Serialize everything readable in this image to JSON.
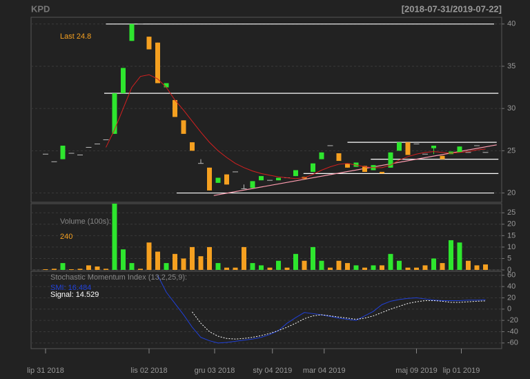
{
  "header": {
    "symbol": "KPD",
    "range": "[2018-07-31/2019-07-22]"
  },
  "chart_data": [
    {
      "type": "candlestick",
      "annotation": "Last 24.8",
      "up_color": "#2ee62e",
      "down_color": "#f5a020",
      "flat_color": "#bbbbbb",
      "ma_color": "#d42020",
      "open": [
        24.6,
        23.7,
        24.0,
        24.7,
        24.5,
        25.4,
        25.8,
        26.3,
        27.0,
        31.8,
        38.0,
        40.0,
        38.5,
        37.8,
        32.5,
        31.0,
        28.6,
        26.0,
        23.5,
        23.0,
        21.2,
        22.2,
        22.5,
        20.5,
        20.6,
        21.5,
        21.5,
        21.5,
        21.8,
        22.0,
        21.9,
        22.5,
        24.0,
        25.6,
        24.7,
        23.5,
        23.1,
        23.2,
        22.7,
        22.5,
        23.0,
        25.0,
        26.0,
        25.8,
        24.6,
        25.3,
        24.4,
        24.6,
        24.8,
        24.8,
        25.6,
        24.8
      ],
      "high": [
        24.6,
        23.7,
        25.6,
        24.7,
        24.5,
        25.4,
        25.8,
        26.3,
        31.8,
        34.8,
        40.0,
        40.0,
        38.5,
        37.8,
        33.0,
        31.0,
        28.6,
        26.0,
        24.0,
        23.0,
        21.8,
        22.2,
        22.5,
        21.0,
        21.4,
        22.0,
        21.5,
        21.8,
        21.8,
        22.7,
        21.9,
        23.5,
        24.8,
        25.6,
        24.7,
        23.5,
        23.6,
        23.2,
        23.3,
        22.5,
        24.8,
        26.0,
        26.0,
        25.8,
        24.6,
        25.6,
        24.4,
        24.9,
        25.5,
        24.8,
        25.6,
        24.8
      ],
      "low": [
        24.6,
        23.7,
        24.0,
        24.7,
        24.5,
        25.4,
        25.8,
        26.3,
        27.0,
        31.8,
        38.0,
        40.0,
        37.0,
        33.0,
        32.5,
        29.0,
        27.0,
        25.0,
        23.5,
        20.3,
        21.2,
        21.0,
        22.5,
        20.5,
        20.6,
        21.5,
        21.5,
        21.5,
        21.8,
        22.0,
        21.6,
        22.5,
        24.0,
        25.6,
        23.8,
        23.0,
        23.1,
        22.5,
        22.7,
        22.3,
        23.0,
        25.0,
        24.5,
        25.8,
        24.6,
        24.6,
        24.0,
        24.6,
        24.8,
        24.8,
        25.6,
        24.8
      ],
      "close": [
        24.6,
        23.7,
        25.6,
        24.7,
        24.5,
        25.4,
        25.8,
        26.3,
        31.8,
        34.8,
        40.0,
        40.0,
        37.0,
        33.0,
        33.0,
        29.0,
        27.0,
        25.0,
        23.5,
        20.3,
        21.8,
        21.0,
        22.5,
        20.5,
        21.4,
        22.0,
        21.5,
        21.8,
        21.8,
        22.7,
        21.7,
        23.5,
        24.8,
        25.6,
        23.8,
        23.0,
        23.6,
        22.5,
        23.3,
        22.3,
        24.8,
        26.0,
        24.5,
        25.8,
        24.6,
        25.6,
        24.0,
        24.9,
        25.5,
        24.8,
        25.6,
        24.8
      ],
      "ma": [
        null,
        null,
        null,
        null,
        null,
        null,
        null,
        25.4,
        27.5,
        30,
        32.5,
        33.8,
        34,
        33.5,
        32.5,
        31,
        29.8,
        28.5,
        27.2,
        26,
        25,
        24.2,
        23.5,
        23,
        22.6,
        22.3,
        22.1,
        21.9,
        21.8,
        21.7,
        21.8,
        22.2,
        22.7,
        23.1,
        23.4,
        23.5,
        23.3,
        23.1,
        23.0,
        23.0,
        23.3,
        23.9,
        24.3,
        24.6,
        24.8,
        24.9,
        24.8,
        24.7,
        24.8,
        24.9,
        25.1,
        25.2
      ],
      "levels": [
        {
          "value": 40,
          "start": 7,
          "end": 52
        },
        {
          "value": 31.8,
          "start": 6.8,
          "end": 52.5
        },
        {
          "value": 20,
          "start": 15.2,
          "end": 52
        },
        {
          "value": 26,
          "start": 35,
          "end": 52.3
        },
        {
          "value": 24,
          "start": 37.7,
          "end": 52.5
        },
        {
          "value": 22.3,
          "start": 29.9,
          "end": 52.5
        }
      ],
      "trend": {
        "start": [
          19.5,
          19.7
        ],
        "end": [
          52.3,
          25.7
        ],
        "color": "#ff9db0"
      },
      "ylim": [
        18.9,
        40.8
      ],
      "yticks": [
        20,
        25,
        30,
        35,
        40
      ],
      "grid": true
    },
    {
      "type": "bar",
      "title": "Volume (100s):",
      "annotation": "240",
      "values": [
        0.3,
        0.5,
        3,
        0.3,
        0.5,
        2,
        1.5,
        0.5,
        29,
        9,
        3,
        0.5,
        12,
        8,
        3,
        7,
        5,
        10,
        6,
        10,
        3,
        1,
        1,
        10,
        3,
        2,
        1,
        4,
        1,
        7,
        4,
        10,
        4,
        1,
        4,
        3,
        2,
        1,
        2,
        2,
        7,
        4,
        1,
        1,
        2,
        5,
        3,
        13,
        12,
        4,
        2,
        2.4
      ],
      "ylim": [
        0,
        29
      ],
      "yticks": [
        0,
        5,
        10,
        15,
        20,
        25
      ],
      "grid": true
    },
    {
      "type": "line",
      "title": "Stochastic Momentum Index (13,2,25,9):",
      "series": [
        {
          "name": "SMI: 16.484",
          "color": "#2040d8",
          "dash": false,
          "values": [
            null,
            null,
            null,
            null,
            null,
            null,
            null,
            null,
            null,
            null,
            null,
            null,
            null,
            60,
            30,
            10,
            -10,
            -32,
            -50,
            -56,
            -60,
            -59,
            -57,
            -55,
            -53,
            -50,
            -45,
            -38,
            -25,
            -15,
            -6,
            -8,
            -10,
            -13,
            -16,
            -18,
            -20,
            -12,
            -4,
            8,
            14,
            17,
            19,
            20,
            18,
            16,
            15,
            15,
            15,
            16,
            16,
            16.484
          ]
        },
        {
          "name": "Signal: 14.529",
          "color": "#ffffff",
          "dash": true,
          "values": [
            null,
            null,
            null,
            null,
            null,
            null,
            null,
            null,
            null,
            null,
            null,
            null,
            null,
            null,
            null,
            null,
            null,
            -5,
            -25,
            -40,
            -48,
            -52,
            -53,
            -52,
            -50,
            -47,
            -43,
            -38,
            -32,
            -25,
            -17,
            -12,
            -10,
            -12,
            -14,
            -16,
            -18,
            -16,
            -12,
            -6,
            0,
            5,
            10,
            13,
            15,
            15,
            14,
            12,
            12,
            13,
            14,
            14.529
          ]
        }
      ],
      "ylim": [
        -70,
        67
      ],
      "yticks": [
        -60,
        -40,
        -20,
        0,
        20,
        40,
        60
      ],
      "grid": true,
      "xticks": [
        {
          "value": 0,
          "label": "lip 31 2018"
        },
        {
          "value": 12,
          "label": "lis 02 2018"
        },
        {
          "value": 19.6,
          "label": "gru 03 2018"
        },
        {
          "value": 26.3,
          "label": "sty 04 2019"
        },
        {
          "value": 32.3,
          "label": "mar 04 2019"
        },
        {
          "value": 43,
          "label": "maj 09 2019"
        },
        {
          "value": 48.2,
          "label": "lip 01 2019"
        }
      ]
    }
  ]
}
